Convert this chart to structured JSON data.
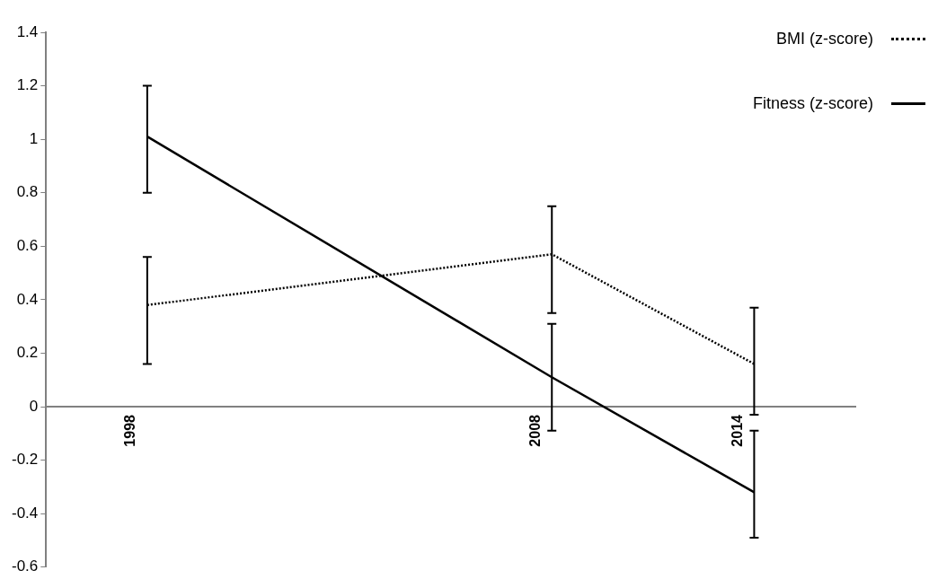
{
  "chart_data": {
    "type": "line",
    "categories": [
      "1998",
      null,
      "2008",
      "2014"
    ],
    "series": [
      {
        "name": "BMI (z-score)",
        "color": "#000000",
        "line_style": "dotted",
        "values": [
          0.38,
          null,
          0.57,
          0.16
        ],
        "errors": [
          [
            0.16,
            0.56
          ],
          null,
          [
            0.35,
            0.75
          ],
          [
            -0.03,
            0.37
          ]
        ]
      },
      {
        "name": "Fitness (z-score)",
        "color": "#000000",
        "line_style": "solid",
        "values": [
          1.01,
          null,
          0.11,
          -0.32
        ],
        "errors": [
          [
            0.8,
            1.2
          ],
          null,
          [
            -0.09,
            0.31
          ],
          [
            -0.49,
            -0.09
          ]
        ]
      }
    ],
    "ylim": [
      -0.6,
      1.4
    ],
    "yticks": [
      -0.6,
      -0.4,
      -0.2,
      0,
      0.2,
      0.4,
      0.6,
      0.8,
      1,
      1.2,
      1.4
    ],
    "grid": false,
    "legend": "top right",
    "marker": "none"
  }
}
